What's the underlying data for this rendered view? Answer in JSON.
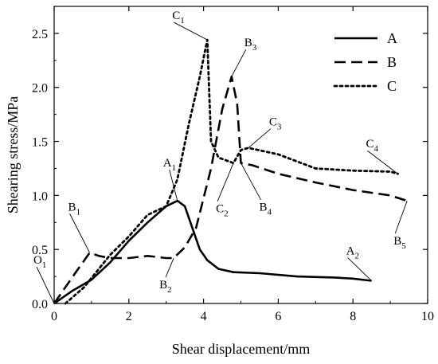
{
  "chart_data": {
    "type": "line",
    "xlabel": "Shear displacement/mm",
    "ylabel": "Shearing stress/MPa",
    "xlim": [
      0,
      10
    ],
    "ylim": [
      0,
      2.75
    ],
    "xticks": [
      "0",
      "2",
      "4",
      "6",
      "8",
      "10"
    ],
    "yticks": [
      "0.0",
      "0.5",
      "1.0",
      "1.5",
      "2.0",
      "2.5"
    ],
    "grid": false,
    "legend_position": "top-right",
    "series": [
      {
        "name": "A",
        "line_style": "solid",
        "x": [
          0,
          0.5,
          1.0,
          1.5,
          2.0,
          2.5,
          3.0,
          3.3,
          3.5,
          3.7,
          3.9,
          4.1,
          4.4,
          4.8,
          5.5,
          6.5,
          7.5,
          8.0,
          8.5
        ],
        "y": [
          0,
          0.12,
          0.22,
          0.38,
          0.58,
          0.75,
          0.9,
          0.95,
          0.9,
          0.7,
          0.5,
          0.4,
          0.32,
          0.29,
          0.28,
          0.25,
          0.24,
          0.23,
          0.21
        ]
      },
      {
        "name": "B",
        "line_style": "dashed",
        "x": [
          0,
          0.5,
          0.95,
          1.2,
          1.5,
          2.0,
          2.5,
          3.0,
          3.2,
          3.5,
          3.8,
          4.2,
          4.5,
          4.75,
          4.9,
          5.0,
          5.3,
          6.0,
          7.0,
          8.0,
          9.0,
          9.45
        ],
        "y": [
          0,
          0.25,
          0.47,
          0.44,
          0.42,
          0.42,
          0.44,
          0.42,
          0.42,
          0.52,
          0.7,
          1.25,
          1.8,
          2.1,
          1.85,
          1.3,
          1.28,
          1.2,
          1.12,
          1.05,
          1.0,
          0.95
        ]
      },
      {
        "name": "C",
        "line_style": "dotted",
        "x": [
          0.3,
          0.8,
          1.5,
          2.0,
          2.5,
          3.0,
          3.3,
          3.6,
          3.9,
          4.1,
          4.2,
          4.4,
          4.8,
          5.0,
          5.2,
          6.0,
          7.0,
          8.0,
          9.0,
          9.2
        ],
        "y": [
          0,
          0.15,
          0.45,
          0.62,
          0.82,
          0.9,
          1.15,
          1.65,
          2.1,
          2.44,
          1.5,
          1.35,
          1.3,
          1.42,
          1.44,
          1.38,
          1.25,
          1.23,
          1.22,
          1.2
        ]
      }
    ],
    "annotations": [
      {
        "base": "O",
        "sub": "1",
        "x": 0,
        "y": 0
      },
      {
        "base": "A",
        "sub": "1",
        "x": 3.3,
        "y": 0.95
      },
      {
        "base": "A",
        "sub": "2",
        "x": 8.5,
        "y": 0.21
      },
      {
        "base": "B",
        "sub": "1",
        "x": 0.95,
        "y": 0.47
      },
      {
        "base": "B",
        "sub": "2",
        "x": 3.2,
        "y": 0.42
      },
      {
        "base": "B",
        "sub": "3",
        "x": 4.75,
        "y": 2.1
      },
      {
        "base": "B",
        "sub": "4",
        "x": 5.0,
        "y": 1.3
      },
      {
        "base": "B",
        "sub": "5",
        "x": 9.45,
        "y": 0.95
      },
      {
        "base": "C",
        "sub": "1",
        "x": 4.1,
        "y": 2.44
      },
      {
        "base": "C",
        "sub": "2",
        "x": 4.8,
        "y": 1.3
      },
      {
        "base": "C",
        "sub": "3",
        "x": 5.2,
        "y": 1.44
      },
      {
        "base": "C",
        "sub": "4",
        "x": 9.2,
        "y": 1.2
      }
    ]
  }
}
